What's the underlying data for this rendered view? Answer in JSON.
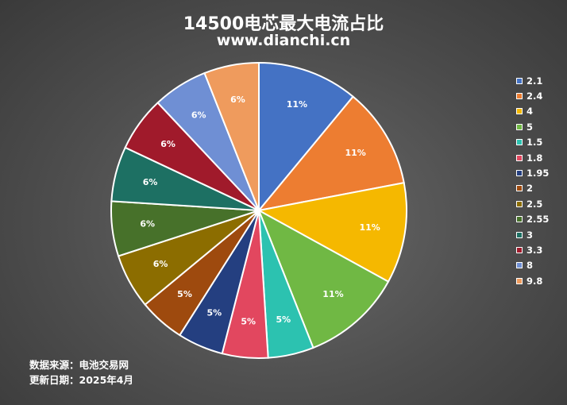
{
  "title": "14500电芯最大电流占比",
  "subtitle": "www.dianchi.cn",
  "footer": {
    "source": "数据来源：电池交易网",
    "updated": "更新日期：2025年4月"
  },
  "chart_data": {
    "type": "pie",
    "categories": [
      "2.1",
      "2.4",
      "4",
      "5",
      "1.5",
      "1.8",
      "1.95",
      "2",
      "2.5",
      "2.55",
      "3",
      "3.3",
      "8",
      "9.8"
    ],
    "values": [
      11,
      11,
      11,
      11,
      5,
      5,
      5,
      5,
      6,
      6,
      6,
      6,
      6,
      6
    ],
    "labels": [
      "11%",
      "11%",
      "11%",
      "11%",
      "5%",
      "5%",
      "5%",
      "5%",
      "6%",
      "6%",
      "6%",
      "6%",
      "6%",
      "6%"
    ],
    "colors": [
      "#4472c4",
      "#ed7d31",
      "#f5b800",
      "#70b844",
      "#2cc2b0",
      "#e2475f",
      "#243f80",
      "#9e4a0e",
      "#8c6d00",
      "#47712a",
      "#1d7063",
      "#a01a2b",
      "#6f8fd4",
      "#ef9b5d"
    ],
    "legend_position": "right"
  }
}
